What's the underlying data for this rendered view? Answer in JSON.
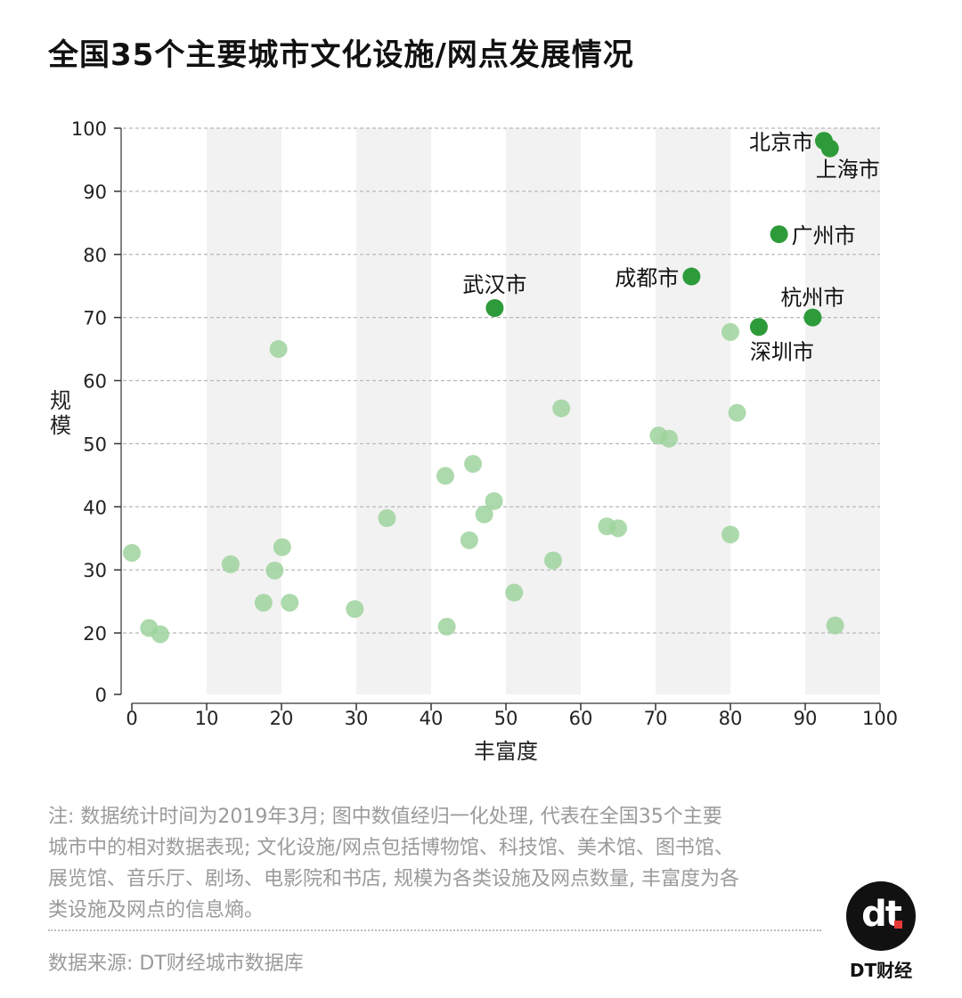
{
  "title": "全国35个主要城市文化设施/网点发展情况",
  "chart_data": {
    "type": "scatter",
    "xlabel": "丰富度",
    "ylabel": "规模",
    "xlim": [
      0,
      100
    ],
    "ylim": [
      0,
      100
    ],
    "x_ticks": [
      0,
      10,
      20,
      30,
      40,
      50,
      60,
      70,
      80,
      90,
      100
    ],
    "y_ticks": [
      0,
      20,
      30,
      40,
      50,
      60,
      70,
      80,
      90,
      100
    ],
    "grid": "horizontal dashed lines with alternating vertical shaded bands",
    "colors": {
      "highlight": "#2e9b3a",
      "other": "#9fd39e",
      "band": "#f2f2f2",
      "grid": "#b8b8b8"
    },
    "highlighted": [
      {
        "label": "北京市",
        "x": 92.5,
        "y": 98.0
      },
      {
        "label": "上海市",
        "x": 93.3,
        "y": 96.8
      },
      {
        "label": "广州市",
        "x": 86.5,
        "y": 83.2
      },
      {
        "label": "成都市",
        "x": 74.8,
        "y": 76.5
      },
      {
        "label": "武汉市",
        "x": 48.5,
        "y": 71.5
      },
      {
        "label": "杭州市",
        "x": 91.0,
        "y": 70.0
      },
      {
        "label": "深圳市",
        "x": 83.8,
        "y": 68.5
      }
    ],
    "others": [
      {
        "x": 0.0,
        "y": 32.7
      },
      {
        "x": 2.3,
        "y": 20.8
      },
      {
        "x": 3.8,
        "y": 19.6
      },
      {
        "x": 13.2,
        "y": 30.9
      },
      {
        "x": 17.6,
        "y": 24.8
      },
      {
        "x": 19.1,
        "y": 29.9
      },
      {
        "x": 19.6,
        "y": 65.0
      },
      {
        "x": 20.1,
        "y": 33.6
      },
      {
        "x": 21.1,
        "y": 24.8
      },
      {
        "x": 29.8,
        "y": 23.8
      },
      {
        "x": 34.1,
        "y": 38.2
      },
      {
        "x": 41.9,
        "y": 44.9
      },
      {
        "x": 42.1,
        "y": 21.0
      },
      {
        "x": 45.1,
        "y": 34.7
      },
      {
        "x": 45.6,
        "y": 46.8
      },
      {
        "x": 47.1,
        "y": 38.8
      },
      {
        "x": 48.4,
        "y": 40.9
      },
      {
        "x": 51.1,
        "y": 26.4
      },
      {
        "x": 56.3,
        "y": 31.5
      },
      {
        "x": 57.4,
        "y": 55.6
      },
      {
        "x": 63.5,
        "y": 36.9
      },
      {
        "x": 65.0,
        "y": 36.6
      },
      {
        "x": 70.4,
        "y": 51.3
      },
      {
        "x": 71.8,
        "y": 50.8
      },
      {
        "x": 80.0,
        "y": 67.7
      },
      {
        "x": 80.0,
        "y": 35.6
      },
      {
        "x": 80.9,
        "y": 54.9
      },
      {
        "x": 94.0,
        "y": 21.2
      }
    ]
  },
  "note_lines": [
    "注: 数据统计时间为2019年3月; 图中数值经归一化处理, 代表在全国35个主要",
    "城市中的相对数据表现; 文化设施/网点包括博物馆、科技馆、美术馆、图书馆、",
    "展览馆、音乐厅、剧场、电影院和书店, 规模为各类设施及网点数量, 丰富度为各",
    "类设施及网点的信息熵。"
  ],
  "source": "数据来源: DT财经城市数据库",
  "logo": {
    "mark": "dt",
    "caption": "DT财经"
  }
}
